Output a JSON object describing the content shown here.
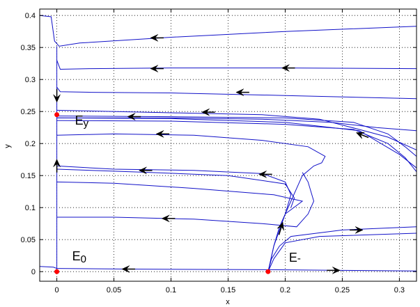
{
  "chart_data": {
    "type": "line",
    "xlabel": "x",
    "ylabel": "y",
    "xlim": [
      -0.015,
      0.315
    ],
    "ylim": [
      -0.015,
      0.41
    ],
    "x_ticks": [
      0,
      0.05,
      0.1,
      0.15,
      0.2,
      0.25,
      0.3
    ],
    "y_ticks": [
      0,
      0.05,
      0.1,
      0.15,
      0.2,
      0.25,
      0.3,
      0.35,
      0.4
    ],
    "grid": true,
    "line_color": "#1010c8",
    "point_color": "#ff0000",
    "equilibria": [
      {
        "label": "E0",
        "x": 0,
        "y": 0
      },
      {
        "label": "Ey",
        "x": 0,
        "y": 0.245
      },
      {
        "label": "E-",
        "x": 0.185,
        "y": 0
      }
    ],
    "series": [
      {
        "values": [
          [
            -0.015,
            0.4
          ],
          [
            -0.005,
            0.398
          ],
          [
            -0.002,
            0.36
          ],
          [
            0.002,
            0.352
          ],
          [
            0.02,
            0.357
          ],
          [
            0.1,
            0.366
          ],
          [
            0.2,
            0.375
          ],
          [
            0.315,
            0.383
          ]
        ]
      },
      {
        "values": [
          [
            0,
            0.33
          ],
          [
            0.003,
            0.316
          ],
          [
            0.03,
            0.317
          ],
          [
            0.1,
            0.318
          ],
          [
            0.2,
            0.318
          ],
          [
            0.315,
            0.317
          ]
        ]
      },
      {
        "values": [
          [
            0.315,
            0.27
          ],
          [
            0.2,
            0.275
          ],
          [
            0.1,
            0.279
          ],
          [
            0.03,
            0.28
          ],
          [
            0.003,
            0.281
          ],
          [
            0,
            0.288
          ]
        ]
      },
      {
        "values": [
          [
            0,
            0.252
          ],
          [
            0.1,
            0.248
          ],
          [
            0.18,
            0.245
          ],
          [
            0.23,
            0.238
          ],
          [
            0.265,
            0.222
          ],
          [
            0.29,
            0.21
          ],
          [
            0.315,
            0.19
          ]
        ]
      },
      {
        "values": [
          [
            0,
            0.243
          ],
          [
            0.1,
            0.242
          ],
          [
            0.2,
            0.24
          ],
          [
            0.26,
            0.233
          ],
          [
            0.29,
            0.215
          ],
          [
            0.305,
            0.195
          ],
          [
            0.315,
            0.18
          ]
        ]
      },
      {
        "values": [
          [
            0,
            0.24
          ],
          [
            0.1,
            0.239
          ],
          [
            0.2,
            0.233
          ],
          [
            0.265,
            0.22
          ],
          [
            0.3,
            0.183
          ],
          [
            0.315,
            0.162
          ]
        ]
      },
      {
        "values": [
          [
            0,
            0.236
          ],
          [
            0.1,
            0.235
          ],
          [
            0.2,
            0.23
          ],
          [
            0.26,
            0.222
          ],
          [
            0.29,
            0.2
          ],
          [
            0.305,
            0.178
          ],
          [
            0.315,
            0.156
          ]
        ]
      },
      {
        "values": [
          [
            0,
            0.24
          ],
          [
            0.1,
            0.24
          ],
          [
            0.18,
            0.238
          ],
          [
            0.24,
            0.233
          ],
          [
            0.28,
            0.225
          ],
          [
            0.315,
            0.22
          ]
        ]
      },
      {
        "values": [
          [
            0,
            0.213
          ],
          [
            0.05,
            0.215
          ],
          [
            0.12,
            0.213
          ],
          [
            0.18,
            0.205
          ],
          [
            0.22,
            0.195
          ],
          [
            0.235,
            0.18
          ],
          [
            0.232,
            0.17
          ],
          [
            0.225,
            0.165
          ],
          [
            0.215,
            0.15
          ],
          [
            0.21,
            0.13
          ],
          [
            0.205,
            0.11
          ],
          [
            0.2,
            0.09
          ],
          [
            0.195,
            0.07
          ],
          [
            0.19,
            0.04
          ],
          [
            0.187,
            0.015
          ],
          [
            0.185,
            0
          ]
        ]
      },
      {
        "values": [
          [
            0,
            0.165
          ],
          [
            0.05,
            0.16
          ],
          [
            0.12,
            0.158
          ],
          [
            0.18,
            0.153
          ],
          [
            0.2,
            0.14
          ],
          [
            0.205,
            0.12
          ],
          [
            0.2,
            0.09
          ],
          [
            0.19,
            0.04
          ],
          [
            0.185,
            0
          ]
        ]
      },
      {
        "values": [
          [
            0,
            0.16
          ],
          [
            0.08,
            0.155
          ],
          [
            0.15,
            0.15
          ],
          [
            0.2,
            0.137
          ],
          [
            0.208,
            0.115
          ],
          [
            0.205,
            0.1
          ]
        ]
      },
      {
        "values": [
          [
            0,
            0.14
          ],
          [
            0.05,
            0.138
          ],
          [
            0.12,
            0.13
          ],
          [
            0.19,
            0.12
          ],
          [
            0.215,
            0.11
          ],
          [
            0.2,
            0.09
          ]
        ]
      },
      {
        "values": [
          [
            0,
            0.085
          ],
          [
            0.05,
            0.085
          ],
          [
            0.12,
            0.082
          ],
          [
            0.18,
            0.075
          ],
          [
            0.21,
            0.07
          ],
          [
            0.22,
            0.09
          ],
          [
            0.225,
            0.11
          ],
          [
            0.22,
            0.14
          ],
          [
            0.215,
            0.155
          ]
        ]
      },
      {
        "values": [
          [
            0.185,
            0
          ],
          [
            0.188,
            0.02
          ],
          [
            0.195,
            0.04
          ],
          [
            0.205,
            0.055
          ],
          [
            0.25,
            0.065
          ],
          [
            0.315,
            0.07
          ]
        ]
      },
      {
        "values": [
          [
            0.185,
            0
          ],
          [
            0.19,
            0.02
          ],
          [
            0.2,
            0.045
          ],
          [
            0.23,
            0.055
          ],
          [
            0.315,
            0.06
          ]
        ]
      },
      {
        "values": [
          [
            0,
            0.005
          ],
          [
            0.06,
            0.004
          ],
          [
            0.185,
            0.003
          ],
          [
            0.25,
            0.002
          ],
          [
            0.315,
            0.001
          ]
        ]
      },
      {
        "values": [
          [
            -0.015,
            0.008
          ],
          [
            -0.003,
            0.007
          ],
          [
            0,
            0.005
          ]
        ]
      },
      {
        "values": [
          [
            0,
            0
          ],
          [
            0,
            0.06
          ],
          [
            0,
            0.12
          ],
          [
            0,
            0.16
          ],
          [
            0,
            0.2
          ],
          [
            0,
            0.245
          ],
          [
            0,
            0.29
          ],
          [
            0,
            0.33
          ],
          [
            0,
            0.352
          ]
        ]
      }
    ],
    "arrows": [
      {
        "x": 0.085,
        "y": 0.365,
        "dx": -1,
        "dy": 0
      },
      {
        "x": 0.085,
        "y": 0.317,
        "dx": -1,
        "dy": 0
      },
      {
        "x": 0.2,
        "y": 0.318,
        "dx": -1,
        "dy": 0
      },
      {
        "x": 0.16,
        "y": 0.28,
        "dx": -1,
        "dy": 0
      },
      {
        "x": 0.13,
        "y": 0.249,
        "dx": -1,
        "dy": 0
      },
      {
        "x": 0.065,
        "y": 0.242,
        "dx": -1,
        "dy": 0
      },
      {
        "x": 0.09,
        "y": 0.215,
        "dx": -1,
        "dy": 0
      },
      {
        "x": 0.075,
        "y": 0.158,
        "dx": -1,
        "dy": 0
      },
      {
        "x": 0.18,
        "y": 0.152,
        "dx": -1,
        "dy": 0
      },
      {
        "x": 0.095,
        "y": 0.083,
        "dx": -1,
        "dy": 0
      },
      {
        "x": 0.265,
        "y": 0.215,
        "dx": -1,
        "dy": 0.4
      },
      {
        "x": 0.06,
        "y": 0.004,
        "dx": -1,
        "dy": 0
      },
      {
        "x": 0.245,
        "y": 0.002,
        "dx": 1,
        "dy": 0
      },
      {
        "x": 0.265,
        "y": 0.065,
        "dx": 1,
        "dy": 0
      },
      {
        "x": 0.197,
        "y": 0.072,
        "dx": 0.3,
        "dy": 1
      },
      {
        "x": 0,
        "y": 0.27,
        "dx": 0,
        "dy": -1
      },
      {
        "x": 0,
        "y": 0.17,
        "dx": 0,
        "dy": 1
      }
    ]
  }
}
